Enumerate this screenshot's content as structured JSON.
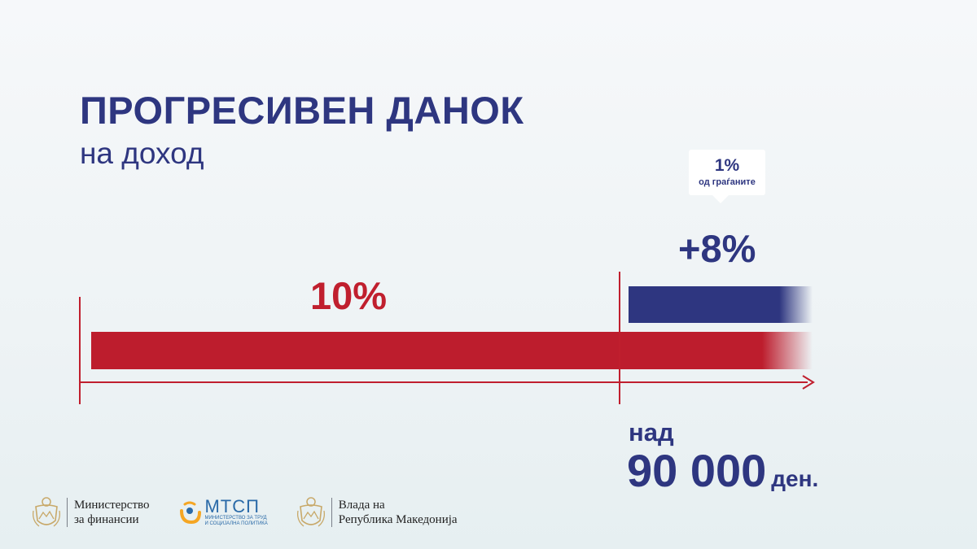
{
  "header": {
    "title": "ПРОГРЕСИВЕН ДАНОК",
    "subtitle": "на доход"
  },
  "callout": {
    "percent": "1%",
    "text": "од граѓаните"
  },
  "bars": {
    "upper_rate": "+8%",
    "base_rate": "10%"
  },
  "threshold": {
    "prefix": "над",
    "amount": "90 000",
    "unit": "ден."
  },
  "footer": {
    "ministry_finance": {
      "line1": "Министерство",
      "line2": "за финансии"
    },
    "mtsp": {
      "name": "МТСП",
      "line1": "МИНИСТЕРСТВО ЗА ТРУД",
      "line2": "И СОЦИЈАЛНА ПОЛИТИКА"
    },
    "government": {
      "line1": "Влада на",
      "line2": "Република Македонија"
    }
  },
  "colors": {
    "navy": "#2e3680",
    "red": "#c01f2e",
    "background": "#eef3f5"
  },
  "icons": [
    "coat-of-arms-icon",
    "mtsp-logo-icon",
    "arrow-right-icon"
  ]
}
